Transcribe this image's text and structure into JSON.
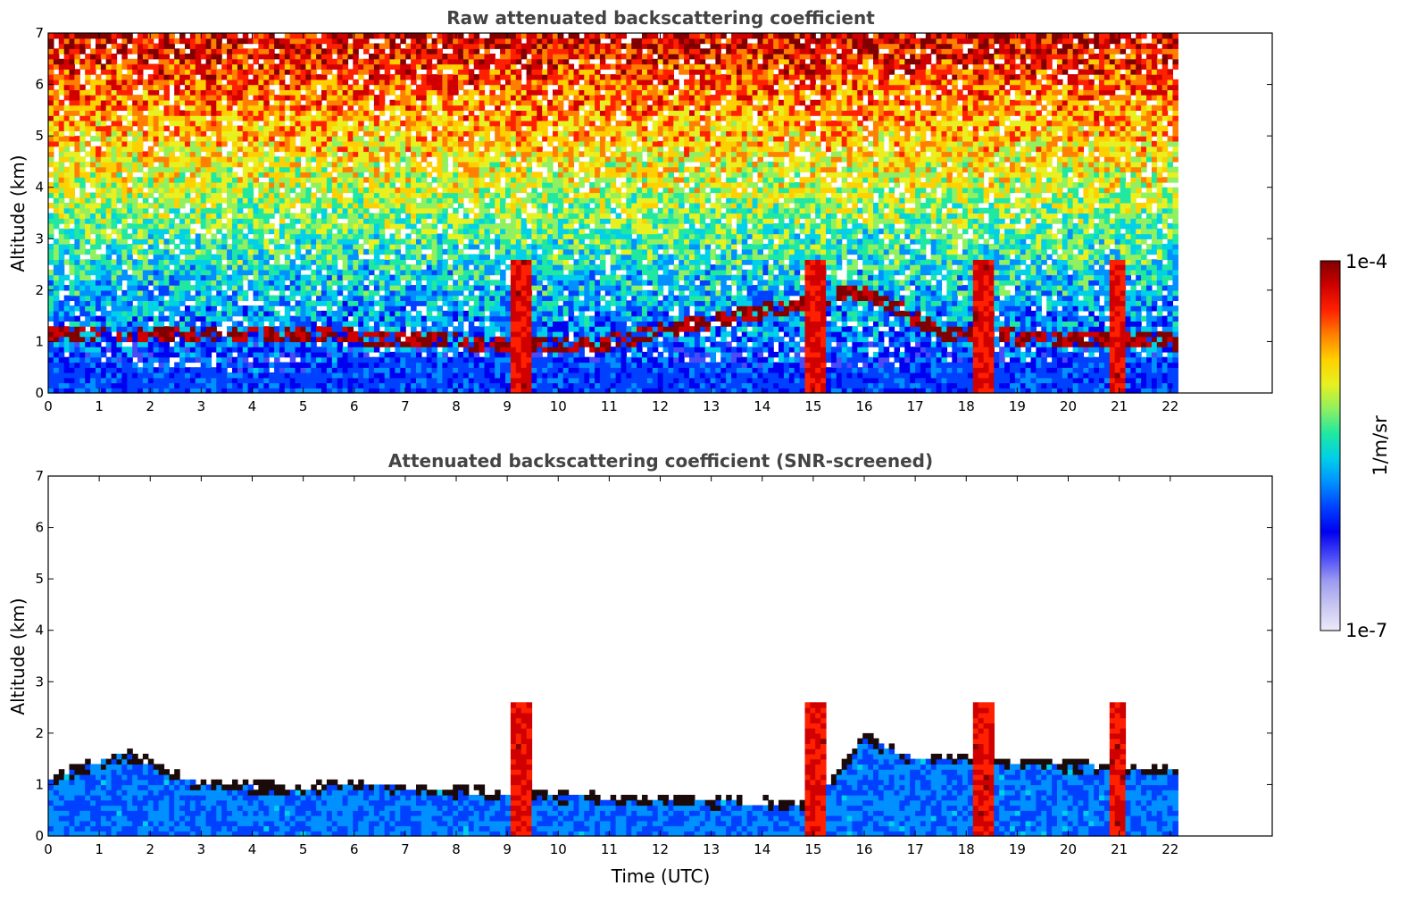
{
  "chart_data": [
    {
      "type": "heatmap",
      "title": "Raw attenuated backscattering coefficient",
      "ylabel": "Altitude (km)",
      "xlabel": "",
      "xlim": [
        0,
        24
      ],
      "ylim": [
        0,
        7
      ],
      "x_ticks": [
        "0",
        "1",
        "2",
        "3",
        "4",
        "5",
        "6",
        "7",
        "8",
        "9",
        "10",
        "11",
        "12",
        "13",
        "14",
        "15",
        "16",
        "17",
        "18",
        "19",
        "20",
        "21",
        "22"
      ],
      "y_ticks": [
        "0",
        "1",
        "2",
        "3",
        "4",
        "5",
        "6",
        "7"
      ],
      "data_extent_x": [
        0,
        22.15
      ],
      "features": {
        "cloud_columns": [
          [
            9.1,
            9.45
          ],
          [
            14.85,
            15.2
          ],
          [
            18.1,
            18.55
          ],
          [
            20.8,
            21.1
          ]
        ],
        "cloud_layer_top_km": [
          [
            6.0,
            1.1
          ],
          [
            8.0,
            1.0
          ],
          [
            11.0,
            1.0
          ],
          [
            16.0,
            2.0
          ],
          [
            17.5,
            1.2
          ],
          [
            19.0,
            1.1
          ],
          [
            22.0,
            1.0
          ]
        ],
        "boundary_layer_top_km": [
          [
            0,
            0.8
          ],
          [
            2,
            0.5
          ],
          [
            5,
            0.4
          ],
          [
            6,
            0.7
          ],
          [
            9,
            0.7
          ],
          [
            15,
            0.5
          ],
          [
            22,
            0.7
          ]
        ],
        "noise_regime": "raw"
      }
    },
    {
      "type": "heatmap",
      "title": "Attenuated backscattering coefficient (SNR-screened)",
      "ylabel": "Altitude (km)",
      "xlabel": "Time (UTC)",
      "xlim": [
        0,
        24
      ],
      "ylim": [
        0,
        7
      ],
      "x_ticks": [
        "0",
        "1",
        "2",
        "3",
        "4",
        "5",
        "6",
        "7",
        "8",
        "9",
        "10",
        "11",
        "12",
        "13",
        "14",
        "15",
        "16",
        "17",
        "18",
        "19",
        "20",
        "21",
        "22"
      ],
      "y_ticks": [
        "0",
        "1",
        "2",
        "3",
        "4",
        "5",
        "6",
        "7"
      ],
      "data_extent_x": [
        0,
        22.15
      ],
      "features": {
        "cloud_columns": [
          [
            9.1,
            9.45
          ],
          [
            14.85,
            15.2
          ],
          [
            18.1,
            18.55
          ],
          [
            20.8,
            21.1
          ]
        ],
        "screened_layer_top_km": [
          [
            0,
            1.1
          ],
          [
            1.5,
            1.6
          ],
          [
            3,
            1.0
          ],
          [
            5,
            0.9
          ],
          [
            6,
            1.0
          ],
          [
            9,
            0.8
          ],
          [
            15,
            0.6
          ],
          [
            16,
            1.9
          ],
          [
            17,
            1.5
          ],
          [
            19,
            1.4
          ],
          [
            22,
            1.3
          ]
        ],
        "noise_regime": "screened"
      }
    }
  ],
  "colorbar": {
    "max_label": "1e-4",
    "min_label": "1e-7",
    "unit_label": "1/m/sr",
    "colors": [
      "#eceaf8",
      "#c8c6f2",
      "#9d9cf0",
      "#4a4af8",
      "#0000f0",
      "#0040ff",
      "#0090ff",
      "#00d0e8",
      "#20e8a0",
      "#90f060",
      "#e8f020",
      "#ffd000",
      "#ff8000",
      "#ff2000",
      "#d00000",
      "#800000"
    ]
  }
}
